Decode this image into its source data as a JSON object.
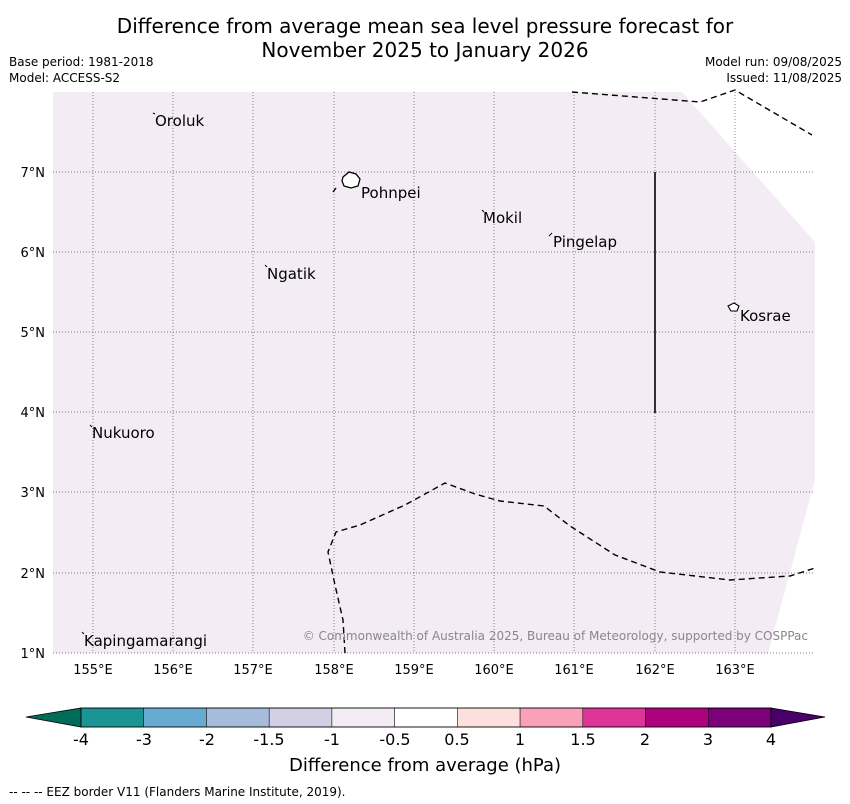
{
  "header": {
    "title_line1": "Difference from average mean sea level pressure forecast for",
    "title_line2": "November 2025 to January 2026",
    "base_period": "Base period: 1981-2018",
    "model": "Model: ACCESS-S2",
    "model_run": "Model run: 09/08/2025",
    "issued": "Issued: 11/08/2025"
  },
  "map": {
    "lat_labels": [
      "7°N",
      "6°N",
      "5°N",
      "4°N",
      "3°N",
      "2°N",
      "1°N"
    ],
    "lon_labels": [
      "155°E",
      "156°E",
      "157°E",
      "158°E",
      "159°E",
      "160°E",
      "161°E",
      "162°E",
      "163°E"
    ],
    "places": [
      {
        "name": "Oroluk"
      },
      {
        "name": "Pohnpei"
      },
      {
        "name": "Mokil"
      },
      {
        "name": "Pingelap"
      },
      {
        "name": "Ngatik"
      },
      {
        "name": "Kosrae"
      },
      {
        "name": "Nukuoro"
      },
      {
        "name": "Kapingamarangi"
      }
    ],
    "fill_color": "#f3ecf4",
    "copyright": "© Commonwealth of Australia 2025, Bureau of Meteorology, supported by COSPPac"
  },
  "colorbar": {
    "labels": [
      "-4",
      "-3",
      "-2",
      "-1.5",
      "-1",
      "-0.5",
      "0.5",
      "1",
      "1.5",
      "2",
      "3",
      "4"
    ],
    "colors": [
      "#1b9494",
      "#67acd0",
      "#a7bcdb",
      "#d2d0e5",
      "#f3ecf4",
      "#ffffff",
      "#fde0dd",
      "#f9a1b9",
      "#dd3497",
      "#ae017e",
      "#7a0177"
    ],
    "low_extend_color": "#016c59",
    "high_extend_color": "#49006a",
    "title": "Difference from average (hPa)"
  },
  "footer": "--  --  -- EEZ border V11 (Flanders Marine Institute, 2019)."
}
